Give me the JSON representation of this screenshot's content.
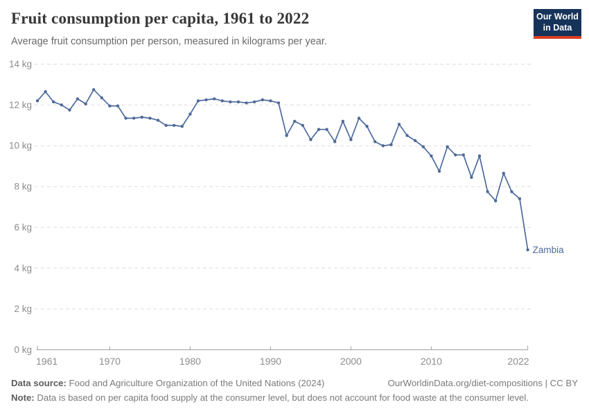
{
  "header": {
    "title": "Fruit consumption per capita, 1961 to 2022",
    "subtitle": "Average fruit consumption per person, measured in kilograms per year.",
    "logo": {
      "line1": "Our World",
      "line2": "in Data",
      "bg_color": "#16335a",
      "stripe_color": "#dc3e26"
    }
  },
  "chart_data": {
    "type": "line",
    "title": "Fruit consumption per capita, 1961 to 2022",
    "ylabel": "kilograms per year",
    "xlim": [
      1961,
      2022
    ],
    "ylim": [
      0,
      14
    ],
    "grid": "horizontal-dashed",
    "legend_position": "line-end-label",
    "colors": {
      "line": "#4c6a9c",
      "grid": "#dcdcdc",
      "axis": "#9e9e9e",
      "tick_text": "#8c8c8c"
    },
    "x_ticks": [
      {
        "value": 1961,
        "label": "1961"
      },
      {
        "value": 1970,
        "label": "1970"
      },
      {
        "value": 1980,
        "label": "1980"
      },
      {
        "value": 1990,
        "label": "1990"
      },
      {
        "value": 2000,
        "label": "2000"
      },
      {
        "value": 2010,
        "label": "2010"
      },
      {
        "value": 2022,
        "label": "2022"
      }
    ],
    "y_ticks": [
      {
        "value": 0,
        "label": "0 kg"
      },
      {
        "value": 2,
        "label": "2 kg"
      },
      {
        "value": 4,
        "label": "4 kg"
      },
      {
        "value": 6,
        "label": "6 kg"
      },
      {
        "value": 8,
        "label": "8 kg"
      },
      {
        "value": 10,
        "label": "10 kg"
      },
      {
        "value": 12,
        "label": "12 kg"
      },
      {
        "value": 14,
        "label": "14 kg"
      }
    ],
    "series": [
      {
        "name": "Zambia",
        "color": "#4c6a9c",
        "years": [
          1961,
          1962,
          1963,
          1964,
          1965,
          1966,
          1967,
          1968,
          1969,
          1970,
          1971,
          1972,
          1973,
          1974,
          1975,
          1976,
          1977,
          1978,
          1979,
          1980,
          1981,
          1982,
          1983,
          1984,
          1985,
          1986,
          1987,
          1988,
          1989,
          1990,
          1991,
          1992,
          1993,
          1994,
          1995,
          1996,
          1997,
          1998,
          1999,
          2000,
          2001,
          2002,
          2003,
          2004,
          2005,
          2006,
          2007,
          2008,
          2009,
          2010,
          2011,
          2012,
          2013,
          2014,
          2015,
          2016,
          2017,
          2018,
          2019,
          2020,
          2021,
          2022
        ],
        "values": [
          12.2,
          12.65,
          12.15,
          12.0,
          11.75,
          12.3,
          12.05,
          12.75,
          12.35,
          11.95,
          11.95,
          11.35,
          11.35,
          11.4,
          11.35,
          11.25,
          11.0,
          11.0,
          10.95,
          11.55,
          12.2,
          12.25,
          12.3,
          12.2,
          12.15,
          12.15,
          12.1,
          12.15,
          12.25,
          12.2,
          12.1,
          10.5,
          11.2,
          11.0,
          10.3,
          10.8,
          10.8,
          10.2,
          11.2,
          10.3,
          11.35,
          10.95,
          10.2,
          10.0,
          10.05,
          11.05,
          10.5,
          10.25,
          9.95,
          9.5,
          8.75,
          9.95,
          9.55,
          9.55,
          8.45,
          9.5,
          7.75,
          7.3,
          8.65,
          7.75,
          7.4,
          4.9
        ]
      }
    ]
  },
  "footer": {
    "datasource_label": "Data source:",
    "datasource_text": " Food and Agriculture Organization of the United Nations (2024)",
    "link_text": "OurWorldinData.org/diet-compositions | CC BY",
    "note_label": "Note:",
    "note_text": " Data is based on per capita food supply at the consumer level, but does not account for food waste at the consumer level."
  }
}
